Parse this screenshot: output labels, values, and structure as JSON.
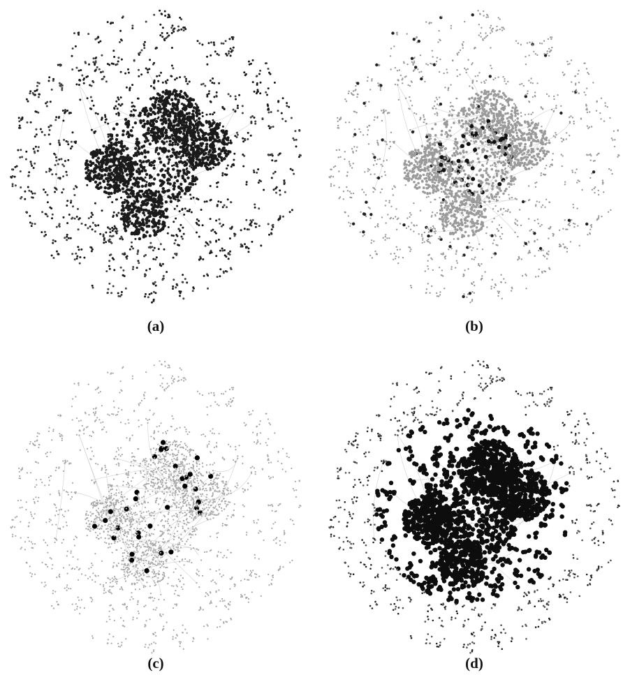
{
  "figure": {
    "panels": [
      {
        "id": "a",
        "label": "(a)",
        "highlight": "moderate-density-nodes",
        "node_color": "#1a1a1a",
        "faint_color": "#444444"
      },
      {
        "id": "b",
        "label": "(b)",
        "highlight": "core-hub-nodes",
        "node_color": "#111111",
        "faint_color": "#9a9a9a"
      },
      {
        "id": "c",
        "label": "(c)",
        "highlight": "sparse-large-nodes",
        "node_color": "#000000",
        "faint_color": "#a8a8a8"
      },
      {
        "id": "d",
        "label": "(d)",
        "highlight": "dense-core-cluster",
        "node_color": "#0d0d0d",
        "faint_color": "#555555"
      }
    ],
    "edge_color": "#cfcfcf"
  }
}
